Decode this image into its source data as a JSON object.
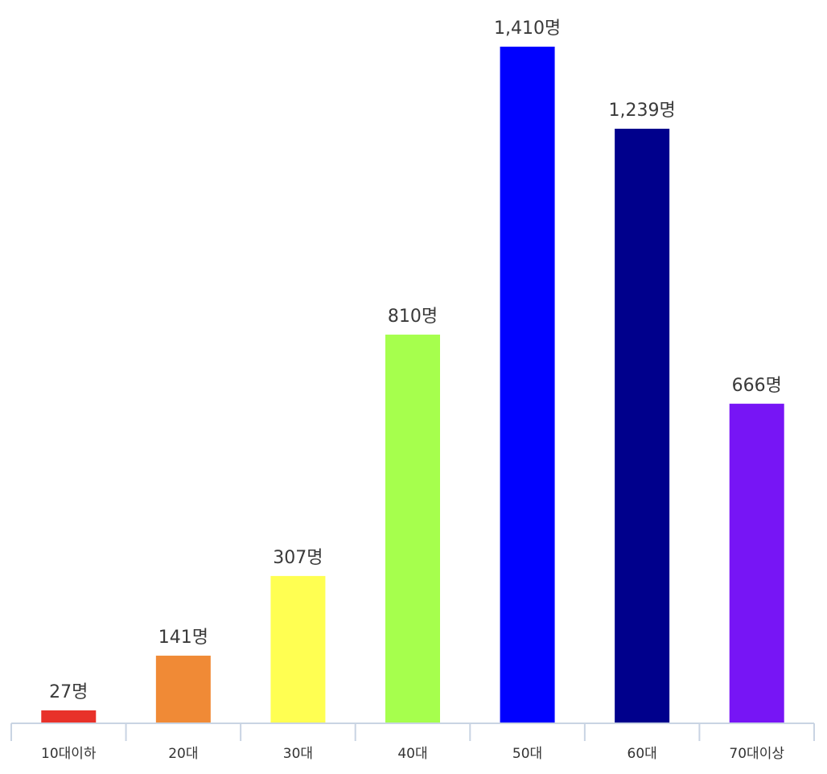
{
  "chart_data": {
    "type": "bar",
    "title": "",
    "xlabel": "",
    "ylabel": "",
    "categories": [
      "10대이하",
      "20대",
      "30대",
      "40대",
      "50대",
      "60대",
      "70대이상"
    ],
    "values": [
      27,
      141,
      307,
      810,
      1410,
      1239,
      666
    ],
    "value_labels": [
      "27명",
      "141명",
      "307명",
      "810명",
      "1,410명",
      "1,239명",
      "666명"
    ],
    "colors": [
      "#e8312a",
      "#f08a36",
      "#ffff52",
      "#a6ff4d",
      "#0000ff",
      "#00008c",
      "#7715f5"
    ],
    "ylim": [
      0,
      1450
    ],
    "grid": false,
    "legend": "none"
  }
}
